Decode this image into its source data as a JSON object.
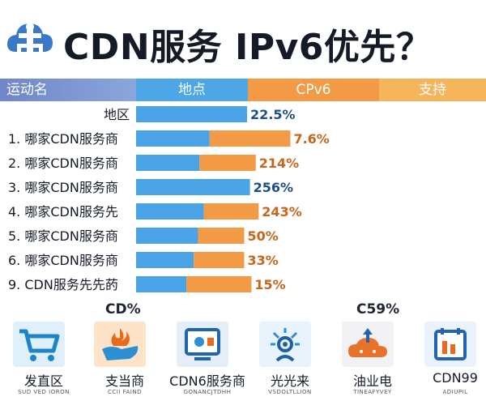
{
  "header": {
    "title": "CDN服务 IPv6优先？",
    "logo_icon": "cloud-network-icon"
  },
  "columns": [
    "运动名",
    "地点",
    "CPv6",
    "支持"
  ],
  "colors": {
    "blue": "#4aa3e4",
    "orange": "#f29a46",
    "blue_text": "#1b4f86",
    "orange_text": "#c8651b"
  },
  "chart_data": {
    "type": "bar",
    "categories": [
      "地区",
      "1. 哪家CDN服务商",
      "2. 哪家CDN服务商",
      "3. 哪家CDN服务商",
      "4. 哪家CDN服务先",
      "5. 哪家CDN服务商",
      "6. 哪家CDN服务商",
      "9. CDN服务先先菂"
    ],
    "series": [
      {
        "values": [
          77,
          51,
          44,
          79,
          47,
          43,
          40,
          35
        ]
      },
      {
        "values": [
          0,
          56,
          39,
          0,
          38,
          32,
          35,
          45
        ]
      }
    ],
    "value_labels": [
      "22.5%",
      "7.6%",
      "214%",
      "256%",
      "243%",
      "50%",
      "33%",
      "15%"
    ],
    "label_color": [
      "blue",
      "orange",
      "orange",
      "blue",
      "orange",
      "orange",
      "orange",
      "orange"
    ]
  },
  "summary": {
    "left": "CD%",
    "right": "C59%"
  },
  "cards": [
    {
      "icon": "shopping-cart-icon",
      "label": "发直区",
      "sub": "SUD VED IORON"
    },
    {
      "icon": "hand-fire-icon",
      "label": "支当商",
      "sub": "CCII FAIND"
    },
    {
      "icon": "server-monitor-icon",
      "label": "CDN6服务商",
      "sub": "GONANCJTDHH"
    },
    {
      "icon": "signal-broadcast-icon",
      "label": "光光来",
      "sub": "VSDOLTLLION"
    },
    {
      "icon": "cloud-upload-icon",
      "label": "油业电",
      "sub": "TINEAFYVEY"
    },
    {
      "icon": "calendar-chart-icon",
      "label": "CDN99",
      "sub": "ADIUPIL"
    }
  ]
}
